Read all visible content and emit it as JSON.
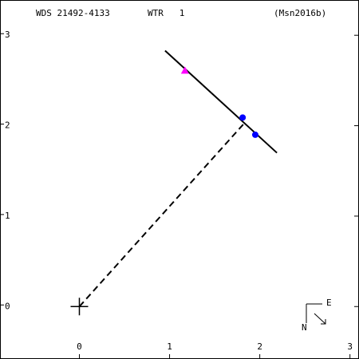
{
  "chart_data": {
    "type": "orbit",
    "title": "WDS 21492-4133",
    "subtitle": "WTR   1",
    "reference": "(Msn2016b)",
    "xlim": [
      -0.88,
      3.1
    ],
    "ylim": [
      -0.58,
      3.39
    ],
    "xticks": [
      0,
      1,
      2,
      3
    ],
    "yticks": [
      0,
      1,
      2,
      3
    ],
    "fit_line": {
      "x": [
        0.95,
        2.19
      ],
      "y": [
        2.83,
        1.7
      ],
      "color": "#000000"
    },
    "separation_line": {
      "x": [
        0,
        1.84
      ],
      "y": [
        0,
        2.04
      ],
      "color": "#000000"
    },
    "points": {
      "x": [
        1.81,
        1.95
      ],
      "y": [
        2.09,
        1.9
      ],
      "color": "#0000ff"
    },
    "first_point": {
      "x": [
        1.17
      ],
      "y": [
        2.61
      ],
      "color": "#ff00ff"
    },
    "origin": {
      "x": 0,
      "y": 0
    },
    "compass": {
      "east": "E",
      "north": "N"
    }
  }
}
